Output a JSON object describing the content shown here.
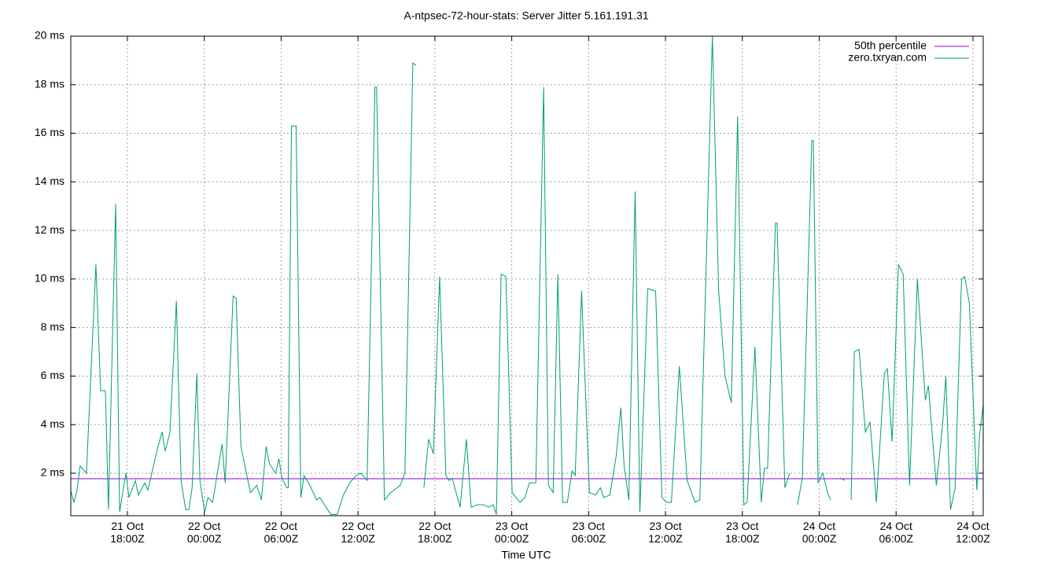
{
  "chart_data": {
    "type": "line",
    "title": "A-ntpsec-72-hour-stats: Server Jitter 5.161.191.31",
    "x_label": "Time UTC",
    "grid": true,
    "legend": "top-right",
    "xlim": [
      13.58,
      84.8
    ],
    "xticks": [
      {
        "value": 18,
        "label": "21 Oct 18:00Z"
      },
      {
        "value": 24,
        "label": "22 Oct 00:00Z"
      },
      {
        "value": 30,
        "label": "22 Oct 06:00Z"
      },
      {
        "value": 36,
        "label": "22 Oct 12:00Z"
      },
      {
        "value": 42,
        "label": "22 Oct 18:00Z"
      },
      {
        "value": 48,
        "label": "23 Oct 00:00Z"
      },
      {
        "value": 54,
        "label": "23 Oct 06:00Z"
      },
      {
        "value": 60,
        "label": "23 Oct 12:00Z"
      },
      {
        "value": 66,
        "label": "23 Oct 18:00Z"
      },
      {
        "value": 72,
        "label": "24 Oct 00:00Z"
      },
      {
        "value": 78,
        "label": "24 Oct 06:00Z"
      },
      {
        "value": 84,
        "label": "24 Oct 12:00Z"
      }
    ],
    "ylim": [
      0.25,
      20
    ],
    "yticks": [
      {
        "value": 2,
        "label": "2 ms"
      },
      {
        "value": 4,
        "label": "4 ms"
      },
      {
        "value": 6,
        "label": "6 ms"
      },
      {
        "value": 8,
        "label": "8 ms"
      },
      {
        "value": 10,
        "label": "10 ms"
      },
      {
        "value": 12,
        "label": "12 ms"
      },
      {
        "value": 14,
        "label": "14 ms"
      },
      {
        "value": 16,
        "label": "16 ms"
      },
      {
        "value": 18,
        "label": "18 ms"
      },
      {
        "value": 20,
        "label": "20 ms"
      }
    ],
    "series": [
      {
        "name": "50th percentile",
        "color": "#9400d3",
        "x": [
          13.58,
          84.8
        ],
        "values": [
          1.77,
          1.77
        ]
      },
      {
        "name": "zero.txryan.com",
        "color": "#009e73",
        "x": [
          13.57,
          13.82,
          14.06,
          14.31,
          14.8,
          15.54,
          15.91,
          16.28,
          16.52,
          17.08,
          17.39,
          17.88,
          18.12,
          18.62,
          18.86,
          19.35,
          19.6,
          20.34,
          20.71,
          20.95,
          21.32,
          21.82,
          22.19,
          22.55,
          22.8,
          23.05,
          23.42,
          23.66,
          24.03,
          24.28,
          24.65,
          25.39,
          25.63,
          26.25,
          26.49,
          26.86,
          27.6,
          28.09,
          28.46,
          28.83,
          29.08,
          29.57,
          29.82,
          30.06,
          30.43,
          30.55,
          30.8,
          31.17,
          31.54,
          31.78,
          32.15,
          32.77,
          33.02,
          33.38,
          33.88,
          34.37,
          34.86,
          35.35,
          35.85,
          36.22,
          36.71,
          37.32,
          37.45,
          38.06,
          38.55,
          39.29,
          39.66,
          40.28,
          40.52,
          40.8,
          41.14,
          41.51,
          41.88,
          42.37,
          42.86,
          43.11,
          43.35,
          43.97,
          44.46,
          44.83,
          45.32,
          45.82,
          46.18,
          46.55,
          46.8,
          47.17,
          47.54,
          48.03,
          48.65,
          49.02,
          49.38,
          49.88,
          50.49,
          50.86,
          51.23,
          51.6,
          51.97,
          52.34,
          52.71,
          52.95,
          53.45,
          54.06,
          54.55,
          54.92,
          55.17,
          55.66,
          56.15,
          56.52,
          56.77,
          57.14,
          57.63,
          58.0,
          58.61,
          59.23,
          59.72,
          60.09,
          60.46,
          61.08,
          61.69,
          62.31,
          62.68,
          63.66,
          64.15,
          64.65,
          65.14,
          65.63,
          66.12,
          66.37,
          66.98,
          67.48,
          67.72,
          67.97,
          68.58,
          68.71,
          69.32,
          69.69,
          70.0,
          70.31,
          70.68,
          71.42,
          71.54,
          71.91,
          72.28,
          72.65,
          72.89,
          73.2,
          73.63,
          74.0,
          74.2,
          74.49,
          74.74,
          75.11,
          75.6,
          75.97,
          76.46,
          77.08,
          77.32,
          77.69,
          78.18,
          78.55,
          79.05,
          79.66,
          80.28,
          80.52,
          81.14,
          81.63,
          81.88,
          82.25,
          82.61,
          83.11,
          83.35,
          83.72,
          84.3,
          84.5,
          84.8
        ],
        "values": [
          1.3,
          0.8,
          1.3,
          2.3,
          2.0,
          10.6,
          5.4,
          5.4,
          0.5,
          13.1,
          0.4,
          2.0,
          1.0,
          1.7,
          1.1,
          1.6,
          1.3,
          3.0,
          3.7,
          2.9,
          3.7,
          9.1,
          1.7,
          0.5,
          0.5,
          1.4,
          6.1,
          1.7,
          0.4,
          1.0,
          0.8,
          3.2,
          1.6,
          9.3,
          9.2,
          3.1,
          1.2,
          1.5,
          0.9,
          3.1,
          2.4,
          2.0,
          2.6,
          1.8,
          1.4,
          1.4,
          16.3,
          16.3,
          1.0,
          1.9,
          1.6,
          0.9,
          1.0,
          0.7,
          0.3,
          0.3,
          1.1,
          1.6,
          1.9,
          2.0,
          1.7,
          17.9,
          17.9,
          0.9,
          1.2,
          1.5,
          2.0,
          18.9,
          18.8,
          null,
          1.4,
          3.4,
          2.8,
          10.1,
          1.9,
          1.7,
          1.8,
          0.6,
          3.4,
          0.6,
          0.7,
          0.7,
          0.6,
          0.7,
          0.3,
          10.2,
          10.1,
          1.2,
          0.8,
          1.0,
          1.6,
          1.6,
          17.9,
          1.5,
          1.2,
          10.2,
          0.8,
          0.8,
          2.1,
          1.9,
          9.5,
          1.2,
          1.1,
          1.4,
          1.0,
          1.1,
          2.7,
          4.7,
          2.3,
          0.9,
          13.6,
          0.4,
          9.6,
          9.5,
          1.0,
          0.8,
          0.8,
          6.4,
          1.7,
          0.8,
          0.9,
          20.0,
          9.5,
          6.0,
          4.9,
          16.7,
          0.7,
          0.8,
          7.2,
          0.8,
          2.2,
          2.2,
          12.3,
          12.3,
          1.4,
          2.0,
          null,
          0.7,
          1.8,
          15.7,
          15.7,
          1.6,
          2.0,
          1.2,
          0.9,
          null,
          1.8,
          1.7,
          null,
          0.9,
          7.0,
          7.1,
          3.7,
          4.1,
          0.8,
          6.1,
          6.3,
          3.3,
          10.6,
          10.2,
          1.5,
          10.0,
          5.0,
          5.6,
          1.5,
          4.0,
          6.0,
          0.5,
          1.4,
          10.0,
          10.1,
          9.0,
          1.3,
          3.5,
          4.8
        ]
      }
    ]
  }
}
